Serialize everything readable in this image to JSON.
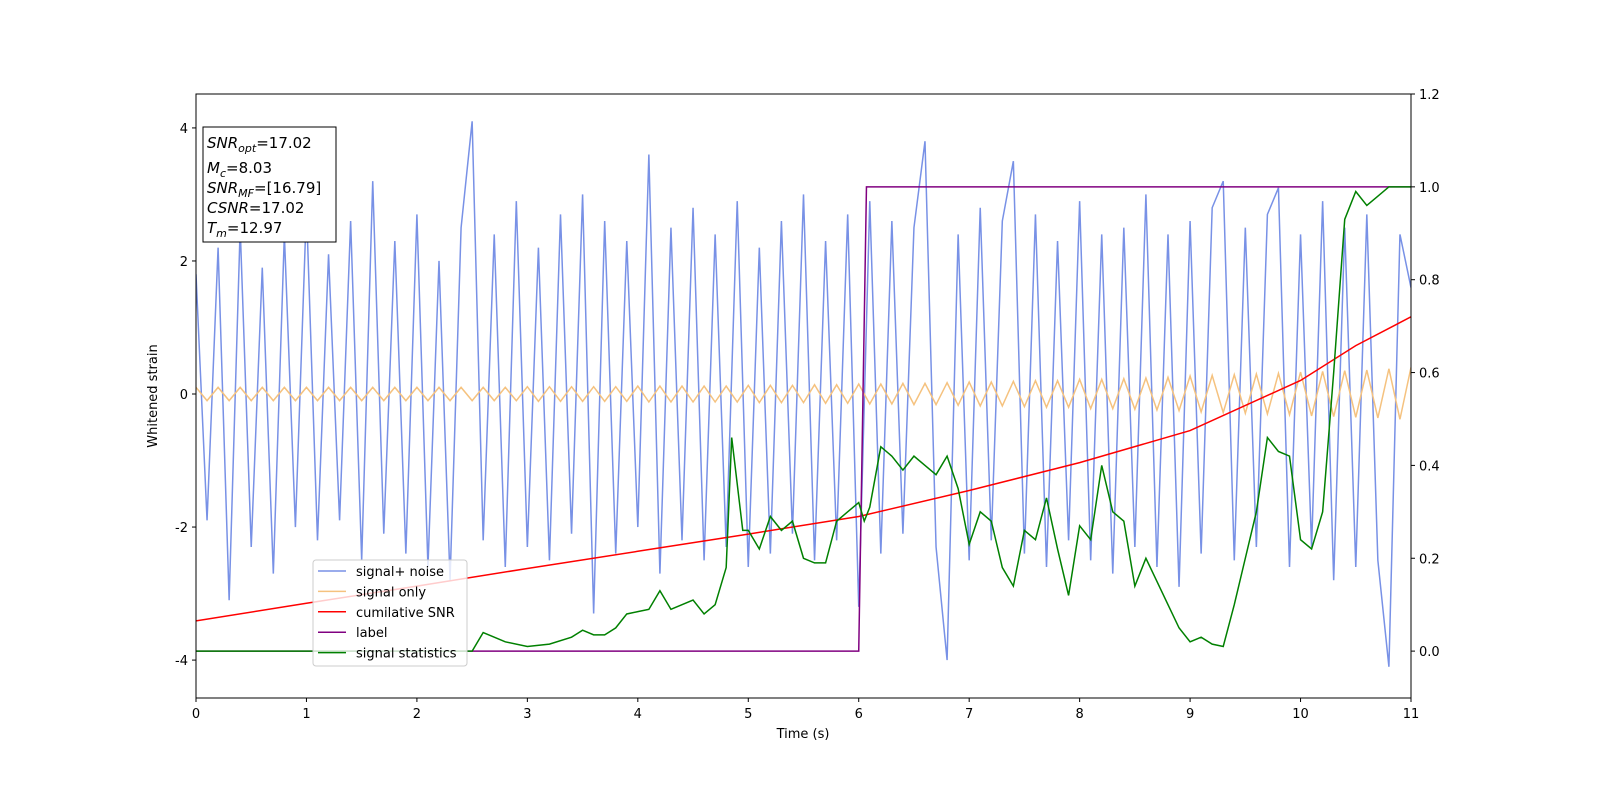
{
  "chart_data": {
    "type": "line",
    "x_label": "Time (s)",
    "y_label": "Whitened strain",
    "xlim": [
      0,
      11
    ],
    "ylim": [
      -4.57,
      4.51
    ],
    "y2lim": [
      -0.101,
      1.2
    ],
    "xticks": [
      0,
      1,
      2,
      3,
      4,
      5,
      6,
      7,
      8,
      9,
      10,
      11
    ],
    "yticks": [
      -4,
      -2,
      0,
      2,
      4
    ],
    "y2ticks": [
      {
        "value": 0,
        "label": "0.0"
      },
      0.2,
      0.4,
      0.6,
      0.8,
      {
        "value": 1,
        "label": "1.0"
      },
      1.2
    ],
    "legend": "lower left",
    "annotations": [
      {
        "name": "SNR",
        "sub": "opt",
        "text": "=17.02"
      },
      {
        "name": "M",
        "sub": "c",
        "text": "=8.03"
      },
      {
        "name": "SNR",
        "sub": "MF",
        "text": "=[16.79]"
      },
      {
        "name": "CSNR",
        "text": "=17.02"
      },
      {
        "name": "T",
        "sub": "m",
        "text": "=12.97"
      }
    ],
    "series": [
      {
        "name": "signal+ noise",
        "color": "#7891e6",
        "x": [
          0,
          0.1,
          0.2,
          0.3,
          0.4,
          0.5,
          0.6,
          0.7,
          0.8,
          0.9,
          1,
          1.1,
          1.2,
          1.3,
          1.4,
          1.5,
          1.6,
          1.7,
          1.8,
          1.9,
          2,
          2.1,
          2.2,
          2.3,
          2.4,
          2.5,
          2.6,
          2.7,
          2.8,
          2.9,
          3,
          3.1,
          3.2,
          3.3,
          3.4,
          3.5,
          3.6,
          3.7,
          3.8,
          3.9,
          4,
          4.1,
          4.2,
          4.3,
          4.4,
          4.5,
          4.6,
          4.7,
          4.8,
          4.9,
          5,
          5.1,
          5.2,
          5.3,
          5.4,
          5.5,
          5.6,
          5.7,
          5.8,
          5.9,
          6,
          6.1,
          6.2,
          6.3,
          6.4,
          6.5,
          6.6,
          6.7,
          6.8,
          6.9,
          7,
          7.1,
          7.2,
          7.3,
          7.4,
          7.5,
          7.6,
          7.7,
          7.8,
          7.9,
          8,
          8.1,
          8.2,
          8.3,
          8.4,
          8.5,
          8.6,
          8.7,
          8.8,
          8.9,
          9,
          9.1,
          9.2,
          9.3,
          9.4,
          9.5,
          9.6,
          9.7,
          9.8,
          9.9,
          10,
          10.1,
          10.2,
          10.3,
          10.4,
          10.5,
          10.6,
          10.7,
          10.8,
          10.9,
          11
        ],
        "values": [
          1.8,
          -1.9,
          2.2,
          -3.1,
          2.5,
          -2.3,
          1.9,
          -2.7,
          2.4,
          -2.0,
          2.8,
          -2.2,
          2.1,
          -1.9,
          2.6,
          -2.5,
          3.2,
          -2.1,
          2.3,
          -2.4,
          2.7,
          -2.6,
          2.0,
          -2.8,
          2.5,
          4.1,
          -2.2,
          2.4,
          -2.6,
          2.9,
          -2.3,
          2.2,
          -2.5,
          2.7,
          -2.1,
          3.0,
          -3.3,
          2.6,
          -2.4,
          2.3,
          -2.0,
          3.6,
          -2.7,
          2.5,
          -2.2,
          2.8,
          -2.5,
          2.4,
          -2.3,
          2.9,
          -2.6,
          2.2,
          -2.4,
          2.6,
          -2.1,
          3.0,
          -2.5,
          2.3,
          -2.2,
          2.7,
          -3.2,
          2.9,
          -2.4,
          2.6,
          -2.1,
          2.5,
          3.8,
          -2.3,
          -4.0,
          2.4,
          -2.5,
          2.8,
          -2.2,
          2.6,
          3.5,
          -2.4,
          2.7,
          -2.6,
          2.3,
          -2.2,
          2.9,
          -2.5,
          2.4,
          -2.7,
          2.5,
          -2.3,
          3.0,
          -2.6,
          2.4,
          -2.9,
          2.6,
          -2.4,
          2.8,
          3.2,
          -2.5,
          2.5,
          -2.3,
          2.7,
          3.1,
          -2.6,
          2.4,
          -2.3,
          2.9,
          -2.8,
          2.5,
          -2.6,
          2.7,
          -2.5,
          -4.1,
          2.4,
          1.6
        ]
      },
      {
        "name": "signal only",
        "color": "#f5c27f",
        "x": [
          0,
          0.1,
          0.2,
          0.3,
          0.4,
          0.5,
          0.6,
          0.7,
          0.8,
          0.9,
          1,
          1.1,
          1.2,
          1.3,
          1.4,
          1.5,
          1.6,
          1.7,
          1.8,
          1.9,
          2,
          2.1,
          2.2,
          2.3,
          2.4,
          2.5,
          2.6,
          2.7,
          2.8,
          2.9,
          3,
          3.1,
          3.2,
          3.3,
          3.4,
          3.5,
          3.6,
          3.7,
          3.8,
          3.9,
          4,
          4.1,
          4.2,
          4.3,
          4.4,
          4.5,
          4.6,
          4.7,
          4.8,
          4.9,
          5,
          5.1,
          5.2,
          5.3,
          5.4,
          5.5,
          5.6,
          5.7,
          5.8,
          5.9,
          6,
          6.1,
          6.2,
          6.3,
          6.4,
          6.5,
          6.6,
          6.7,
          6.8,
          6.9,
          7,
          7.1,
          7.2,
          7.3,
          7.4,
          7.5,
          7.6,
          7.7,
          7.8,
          7.9,
          8,
          8.1,
          8.2,
          8.3,
          8.4,
          8.5,
          8.6,
          8.7,
          8.8,
          8.9,
          9,
          9.1,
          9.2,
          9.3,
          9.4,
          9.5,
          9.6,
          9.7,
          9.8,
          9.9,
          10,
          10.1,
          10.2,
          10.3,
          10.4,
          10.5,
          10.6,
          10.7,
          10.8,
          10.9,
          11
        ],
        "values": [
          0.1,
          -0.1,
          0.1,
          -0.1,
          0.1,
          -0.1,
          0.1,
          -0.1,
          0.1,
          -0.1,
          0.1,
          -0.1,
          0.1,
          -0.1,
          0.1,
          -0.1,
          0.1,
          -0.1,
          0.1,
          -0.1,
          0.1,
          -0.1,
          0.1,
          -0.1,
          0.1,
          -0.1,
          0.1,
          -0.1,
          0.1,
          -0.1,
          0.11,
          -0.11,
          0.11,
          -0.11,
          0.11,
          -0.11,
          0.11,
          -0.11,
          0.11,
          -0.11,
          0.12,
          -0.12,
          0.12,
          -0.12,
          0.12,
          -0.12,
          0.12,
          -0.12,
          0.12,
          -0.12,
          0.13,
          -0.13,
          0.13,
          -0.13,
          0.13,
          -0.13,
          0.14,
          -0.14,
          0.14,
          -0.14,
          0.15,
          -0.15,
          0.15,
          -0.15,
          0.16,
          -0.16,
          0.16,
          -0.16,
          0.17,
          -0.17,
          0.18,
          -0.18,
          0.18,
          -0.18,
          0.19,
          -0.19,
          0.2,
          -0.2,
          0.2,
          -0.2,
          0.22,
          -0.22,
          0.22,
          -0.22,
          0.23,
          -0.23,
          0.24,
          -0.24,
          0.25,
          -0.25,
          0.27,
          -0.27,
          0.28,
          -0.28,
          0.29,
          -0.29,
          0.3,
          -0.3,
          0.31,
          -0.31,
          0.33,
          -0.33,
          0.34,
          -0.34,
          0.35,
          -0.35,
          0.36,
          -0.36,
          0.38,
          -0.38,
          0.4
        ]
      },
      {
        "name": "cumilative SNR",
        "color": "#ff0000",
        "axis": "y2",
        "x": [
          0,
          1,
          2,
          3,
          4,
          5,
          6,
          7,
          8,
          9,
          10,
          10.5,
          11
        ],
        "values": [
          0.065,
          0.103,
          0.14,
          0.178,
          0.215,
          0.252,
          0.29,
          0.346,
          0.406,
          0.475,
          0.583,
          0.658,
          0.72
        ]
      },
      {
        "name": "label",
        "color": "#800080",
        "axis": "y2",
        "x": [
          0,
          6,
          6.07,
          11
        ],
        "values": [
          0,
          0,
          1,
          1
        ]
      },
      {
        "name": "signal statistics",
        "color": "#008000",
        "axis": "y2",
        "x": [
          0,
          1,
          2.5,
          2.6,
          2.8,
          3,
          3.2,
          3.4,
          3.5,
          3.6,
          3.7,
          3.8,
          3.9,
          4,
          4.1,
          4.2,
          4.3,
          4.4,
          4.5,
          4.6,
          4.7,
          4.8,
          4.85,
          4.95,
          5,
          5.1,
          5.2,
          5.3,
          5.4,
          5.5,
          5.6,
          5.7,
          5.8,
          5.9,
          6,
          6.05,
          6.1,
          6.2,
          6.3,
          6.4,
          6.5,
          6.6,
          6.7,
          6.8,
          6.9,
          7,
          7.1,
          7.2,
          7.3,
          7.4,
          7.5,
          7.6,
          7.7,
          7.8,
          7.9,
          8,
          8.1,
          8.2,
          8.3,
          8.4,
          8.5,
          8.6,
          8.7,
          8.8,
          8.9,
          9,
          9.1,
          9.2,
          9.3,
          9.4,
          9.5,
          9.6,
          9.7,
          9.8,
          9.9,
          10,
          10.1,
          10.2,
          10.3,
          10.4,
          10.5,
          10.6,
          10.7,
          10.8,
          11
        ],
        "values": [
          0,
          0,
          0,
          0.04,
          0.02,
          0.01,
          0.015,
          0.03,
          0.045,
          0.035,
          0.035,
          0.05,
          0.08,
          0.085,
          0.09,
          0.13,
          0.09,
          0.1,
          0.11,
          0.08,
          0.1,
          0.18,
          0.46,
          0.26,
          0.26,
          0.22,
          0.29,
          0.26,
          0.28,
          0.2,
          0.19,
          0.19,
          0.28,
          0.3,
          0.32,
          0.28,
          0.31,
          0.44,
          0.42,
          0.39,
          0.42,
          0.4,
          0.38,
          0.42,
          0.35,
          0.23,
          0.3,
          0.28,
          0.18,
          0.14,
          0.26,
          0.24,
          0.33,
          0.22,
          0.12,
          0.27,
          0.24,
          0.4,
          0.3,
          0.28,
          0.14,
          0.2,
          0.15,
          0.1,
          0.05,
          0.02,
          0.03,
          0.015,
          0.01,
          0.1,
          0.2,
          0.3,
          0.46,
          0.43,
          0.42,
          0.24,
          0.22,
          0.3,
          0.6,
          0.93,
          0.99,
          0.96,
          0.98,
          1,
          1
        ]
      }
    ]
  }
}
